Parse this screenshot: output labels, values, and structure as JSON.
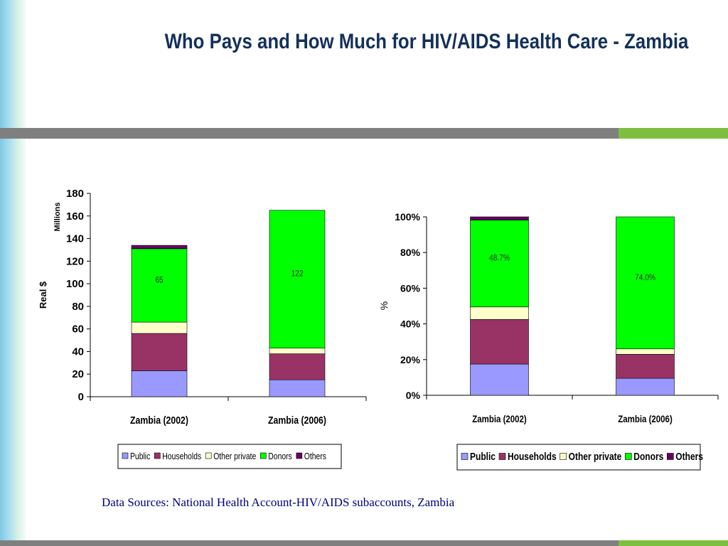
{
  "slide": {
    "title": "Who Pays and How Much for HIV/AIDS Health Care - Zambia",
    "source": "Data Sources: National Health Account-HIV/AIDS subaccounts, Zambia"
  },
  "colors": {
    "Public": "#9999ff",
    "Households": "#993366",
    "Other private": "#ffffcc",
    "Donors": "#00ff00",
    "Others": "#660066"
  },
  "chart_data": [
    {
      "type": "bar",
      "stacked": true,
      "categories": [
        "Zambia (2002)",
        "Zambia (2006)"
      ],
      "series": [
        {
          "name": "Public",
          "values": [
            23,
            15
          ]
        },
        {
          "name": "Households",
          "values": [
            33,
            23
          ]
        },
        {
          "name": "Other private",
          "values": [
            10,
            5
          ]
        },
        {
          "name": "Donors",
          "values": [
            65,
            122
          ]
        },
        {
          "name": "Others",
          "values": [
            3,
            0
          ]
        }
      ],
      "data_labels": {
        "series": "Donors",
        "labels": [
          "65",
          "122"
        ]
      },
      "ylabel": "Real $",
      "yunit": "Millions",
      "ylim": [
        0,
        180
      ],
      "yticks": [
        "0",
        "20",
        "40",
        "60",
        "80",
        "100",
        "120",
        "140",
        "160",
        "180"
      ],
      "grid": false,
      "legend": "bottom"
    },
    {
      "type": "bar",
      "stacked": true,
      "percent": true,
      "categories": [
        "Zambia (2002)",
        "Zambia (2006)"
      ],
      "series": [
        {
          "name": "Public",
          "values": [
            17.5,
            9.5
          ]
        },
        {
          "name": "Households",
          "values": [
            25,
            13.5
          ]
        },
        {
          "name": "Other private",
          "values": [
            7,
            3
          ]
        },
        {
          "name": "Donors",
          "values": [
            48.7,
            74.0
          ]
        },
        {
          "name": "Others",
          "values": [
            1.8,
            0
          ]
        }
      ],
      "data_labels": {
        "series": "Donors",
        "labels": [
          "48.7%",
          "74.0%"
        ]
      },
      "ylabel": "%",
      "ylim": [
        0,
        100
      ],
      "yticks": [
        "0%",
        "20%",
        "40%",
        "60%",
        "80%",
        "100%"
      ],
      "grid": false,
      "legend": "bottom"
    }
  ]
}
